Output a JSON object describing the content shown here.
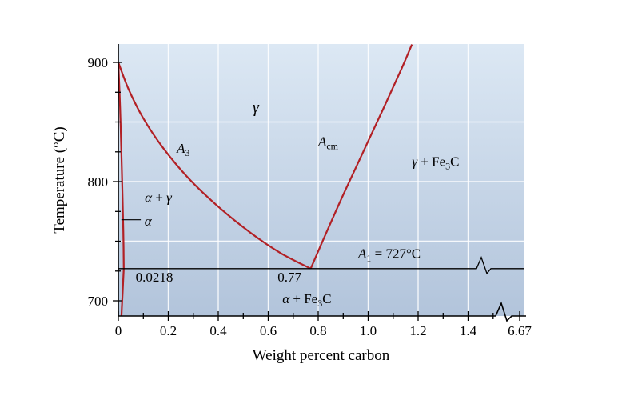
{
  "figure": {
    "colors": {
      "background": "#ffffff",
      "plot_top": "#dce8f4",
      "plot_bottom": "#b2c4db",
      "grid": "#ffffff",
      "boundary": "#b22025",
      "axis": "#000000",
      "text": "#000000"
    }
  },
  "chart_data": {
    "type": "line",
    "xlabel": "Weight percent carbon",
    "ylabel": "Temperature (°C)",
    "xlim": [
      0,
      1.55
    ],
    "ylim": [
      687,
      915
    ],
    "grid": true,
    "x_ticks": [
      {
        "v": 0,
        "label": "0"
      },
      {
        "v": 0.2,
        "label": "0.2"
      },
      {
        "v": 0.4,
        "label": "0.4"
      },
      {
        "v": 0.6,
        "label": "0.6"
      },
      {
        "v": 0.8,
        "label": "0.8"
      },
      {
        "v": 1.0,
        "label": "1.0"
      },
      {
        "v": 1.2,
        "label": "1.2"
      },
      {
        "v": 1.4,
        "label": "1.4"
      },
      {
        "v": 6.67,
        "label": "6.67",
        "after_break": true
      }
    ],
    "x_minor_ticks": [
      0.1,
      0.3,
      0.5,
      0.7,
      0.9,
      1.1,
      1.3,
      1.5
    ],
    "y_ticks": [
      {
        "v": 900,
        "label": "900"
      },
      {
        "v": 800,
        "label": "800"
      },
      {
        "v": 700,
        "label": "700"
      }
    ],
    "y_minor_ticks": [
      725,
      750,
      775,
      825,
      850,
      875
    ],
    "x_gridlines": [
      0.2,
      0.4,
      0.6,
      0.8,
      1.0,
      1.2,
      1.4
    ],
    "y_gridlines": [
      750,
      800,
      850
    ],
    "series": [
      {
        "id": "a3-boundary",
        "name": "A3 boundary (γ / α+γ)",
        "points": [
          [
            0,
            900
          ],
          [
            0.04,
            878
          ],
          [
            0.1,
            853
          ],
          [
            0.18,
            828
          ],
          [
            0.28,
            803
          ],
          [
            0.4,
            779
          ],
          [
            0.53,
            757
          ],
          [
            0.65,
            740
          ],
          [
            0.77,
            727
          ]
        ]
      },
      {
        "id": "acm-boundary",
        "name": "Acm boundary (γ / γ+Fe3C)",
        "points": [
          [
            0.77,
            727
          ],
          [
            0.83,
            756
          ],
          [
            0.9,
            789
          ],
          [
            0.98,
            825
          ],
          [
            1.06,
            861
          ],
          [
            1.13,
            893
          ],
          [
            1.175,
            915
          ]
        ]
      },
      {
        "id": "alpha-left-boundary",
        "name": "α / α+γ boundary",
        "points": [
          [
            0,
            900
          ],
          [
            0.007,
            862
          ],
          [
            0.012,
            825
          ],
          [
            0.017,
            786
          ],
          [
            0.02,
            755
          ],
          [
            0.0218,
            727
          ]
        ]
      },
      {
        "id": "alpha-solvus",
        "name": "α / α+Fe3C solvus",
        "points": [
          [
            0.0218,
            727
          ],
          [
            0.018,
            710
          ],
          [
            0.015,
            698
          ],
          [
            0.0125,
            687
          ]
        ]
      }
    ],
    "eutectoid_line": {
      "temperature_c": 727
    },
    "key_points": {
      "eutectoid_composition_wt_pct": 0.77,
      "eutectoid_temperature_c": 727,
      "alpha_max_solubility_wt_pct": 0.0218,
      "cementite_composition_wt_pct": 6.67
    },
    "annotations": [
      {
        "id": "gamma-region",
        "x": 0.55,
        "y": 858,
        "size": 20,
        "anchor": "middle",
        "parts": [
          {
            "t": "γ",
            "italic": true
          }
        ]
      },
      {
        "id": "a3-label",
        "x": 0.26,
        "y": 824,
        "size": 17,
        "anchor": "middle",
        "parts": [
          {
            "t": "A",
            "italic": true
          },
          {
            "t": "3",
            "sub": true
          }
        ]
      },
      {
        "id": "acm-label",
        "x": 0.84,
        "y": 830,
        "size": 17,
        "anchor": "middle",
        "parts": [
          {
            "t": "A",
            "italic": true
          },
          {
            "t": "cm",
            "sub": true
          }
        ]
      },
      {
        "id": "gamma-fe3c-region",
        "x": 1.27,
        "y": 813,
        "size": 17,
        "anchor": "middle",
        "parts": [
          {
            "t": "γ",
            "italic": true
          },
          {
            "t": " + Fe"
          },
          {
            "t": "3",
            "sub": true
          },
          {
            "t": "C"
          }
        ]
      },
      {
        "id": "alpha-gamma-region",
        "x": 0.16,
        "y": 783,
        "size": 17,
        "anchor": "middle",
        "parts": [
          {
            "t": "α",
            "italic": true
          },
          {
            "t": " + "
          },
          {
            "t": "γ",
            "italic": true
          }
        ]
      },
      {
        "id": "alpha-region",
        "x": 0.105,
        "y": 763,
        "size": 17,
        "anchor": "start",
        "parts": [
          {
            "t": "α",
            "italic": true
          }
        ],
        "leader": {
          "x1": 0.012,
          "x2": 0.09,
          "y": 768
        }
      },
      {
        "id": "a1-label",
        "x": 1.085,
        "y": 736,
        "size": 17,
        "anchor": "middle",
        "parts": [
          {
            "t": "A",
            "italic": true
          },
          {
            "t": "1",
            "sub": true
          },
          {
            "t": " = 727°C"
          }
        ]
      },
      {
        "id": "alpha-max-solubility-label",
        "x": 0.144,
        "y": 716,
        "size": 17,
        "anchor": "middle",
        "parts": [
          {
            "t": "0.0218"
          }
        ]
      },
      {
        "id": "eutectoid-composition-label",
        "x": 0.685,
        "y": 716,
        "size": 17,
        "anchor": "middle",
        "parts": [
          {
            "t": "0.77"
          }
        ]
      },
      {
        "id": "alpha-fe3c-region",
        "x": 0.755,
        "y": 698,
        "size": 17,
        "anchor": "middle",
        "parts": [
          {
            "t": "α",
            "italic": true
          },
          {
            "t": " + Fe"
          },
          {
            "t": "3",
            "sub": true
          },
          {
            "t": "C"
          }
        ]
      }
    ]
  }
}
